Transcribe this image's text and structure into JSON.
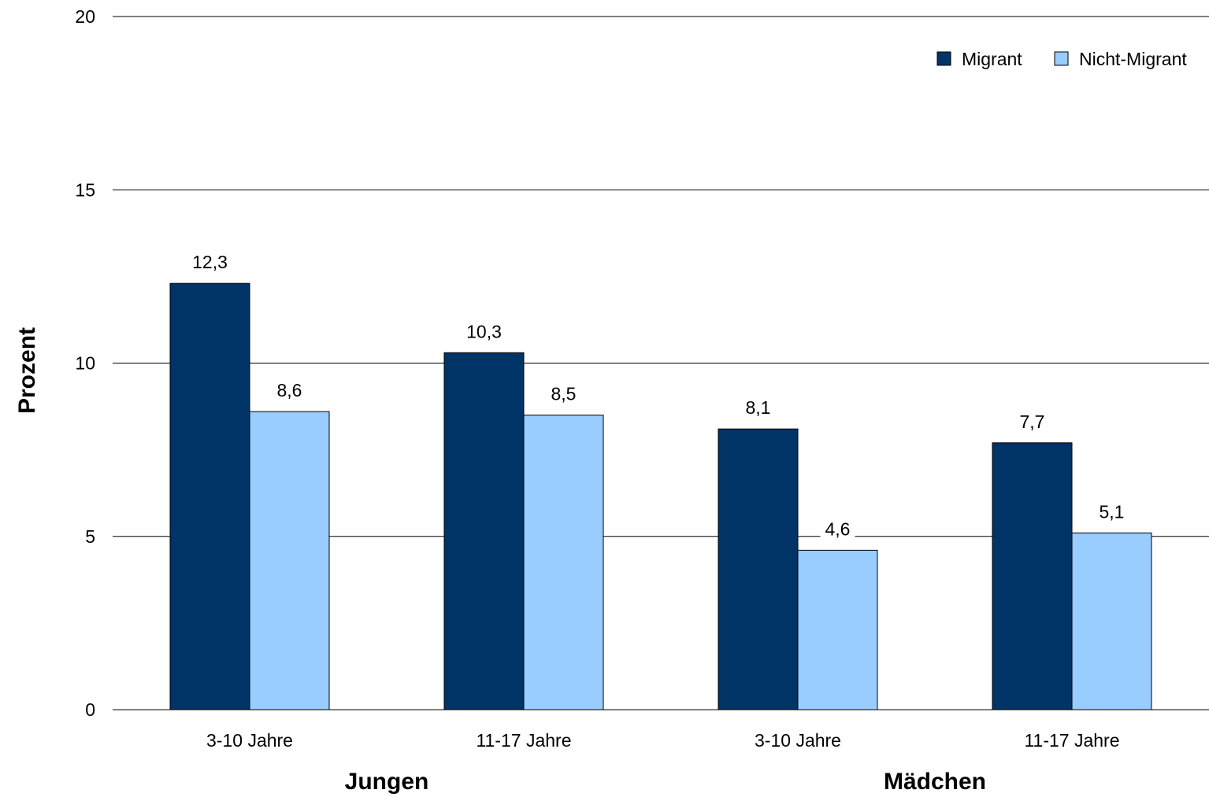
{
  "chart_data": {
    "type": "bar",
    "categories": [
      "3-10 Jahre",
      "11-17 Jahre",
      "3-10 Jahre",
      "11-17 Jahre"
    ],
    "groups": [
      {
        "label": "Jungen",
        "categories": [
          0,
          1
        ]
      },
      {
        "label": "Mädchen",
        "categories": [
          2,
          3
        ]
      }
    ],
    "series": [
      {
        "name": "Migrant",
        "color": "#003366",
        "values": [
          12.3,
          10.3,
          8.1,
          7.7
        ],
        "labels": [
          "12,3",
          "10,3",
          "8,1",
          "7,7"
        ]
      },
      {
        "name": "Nicht-Migrant",
        "color": "#99CCFF",
        "values": [
          8.6,
          8.5,
          4.6,
          5.1
        ],
        "labels": [
          "8,6",
          "8,5",
          "4,6",
          "5,1"
        ]
      }
    ],
    "ylabel": "Prozent",
    "xlabel": "",
    "ylim": [
      0,
      20
    ],
    "yticks": [
      0,
      5,
      10,
      15,
      20
    ],
    "grid": true,
    "legend_position": "top-right"
  }
}
